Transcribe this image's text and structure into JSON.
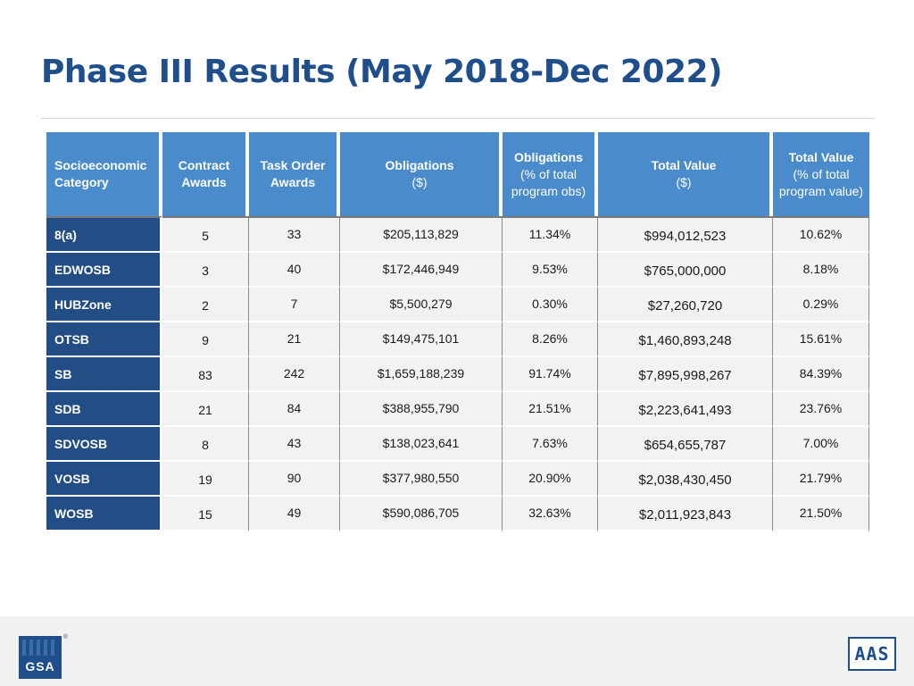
{
  "title": "Phase III Results (May 2018-Dec 2022)",
  "headers": [
    {
      "bold": "Socioeconomic Category",
      "normal": ""
    },
    {
      "bold": "Contract Awards",
      "normal": ""
    },
    {
      "bold": "Task Order Awards",
      "normal": ""
    },
    {
      "bold": "Obligations",
      "normal": "($)"
    },
    {
      "bold": "Obligations",
      "normal": "(% of total program obs)"
    },
    {
      "bold": "Total Value",
      "normal": "($)"
    },
    {
      "bold": "Total Value",
      "normal": "(% of total program value)"
    }
  ],
  "rows": [
    {
      "category": "8(a)",
      "contract_awards": "5",
      "task_order_awards": "33",
      "obligations": "$205,113,829",
      "obligations_pct": "11.34%",
      "total_value": "$994,012,523",
      "total_value_pct": "10.62%"
    },
    {
      "category": "EDWOSB",
      "contract_awards": "3",
      "task_order_awards": "40",
      "obligations": "$172,446,949",
      "obligations_pct": "9.53%",
      "total_value": "$765,000,000",
      "total_value_pct": "8.18%"
    },
    {
      "category": "HUBZone",
      "contract_awards": "2",
      "task_order_awards": "7",
      "obligations": "$5,500,279",
      "obligations_pct": "0.30%",
      "total_value": "$27,260,720",
      "total_value_pct": "0.29%"
    },
    {
      "category": "OTSB",
      "contract_awards": "9",
      "task_order_awards": "21",
      "obligations": "$149,475,101",
      "obligations_pct": "8.26%",
      "total_value": "$1,460,893,248",
      "total_value_pct": "15.61%"
    },
    {
      "category": "SB",
      "contract_awards": "83",
      "task_order_awards": "242",
      "obligations": "$1,659,188,239",
      "obligations_pct": "91.74%",
      "total_value": "$7,895,998,267",
      "total_value_pct": "84.39%"
    },
    {
      "category": "SDB",
      "contract_awards": "21",
      "task_order_awards": "84",
      "obligations": "$388,955,790",
      "obligations_pct": "21.51%",
      "total_value": "$2,223,641,493",
      "total_value_pct": "23.76%"
    },
    {
      "category": "SDVOSB",
      "contract_awards": "8",
      "task_order_awards": "43",
      "obligations": "$138,023,641",
      "obligations_pct": "7.63%",
      "total_value": "$654,655,787",
      "total_value_pct": "7.00%"
    },
    {
      "category": "VOSB",
      "contract_awards": "19",
      "task_order_awards": "90",
      "obligations": "$377,980,550",
      "obligations_pct": "20.90%",
      "total_value": "$2,038,430,450",
      "total_value_pct": "21.79%"
    },
    {
      "category": "WOSB",
      "contract_awards": "15",
      "task_order_awards": "49",
      "obligations": "$590,086,705",
      "obligations_pct": "32.63%",
      "total_value": "$2,011,923,843",
      "total_value_pct": "21.50%"
    }
  ],
  "footer": {
    "left_logo": "GSA",
    "right_logo": "AAS"
  }
}
